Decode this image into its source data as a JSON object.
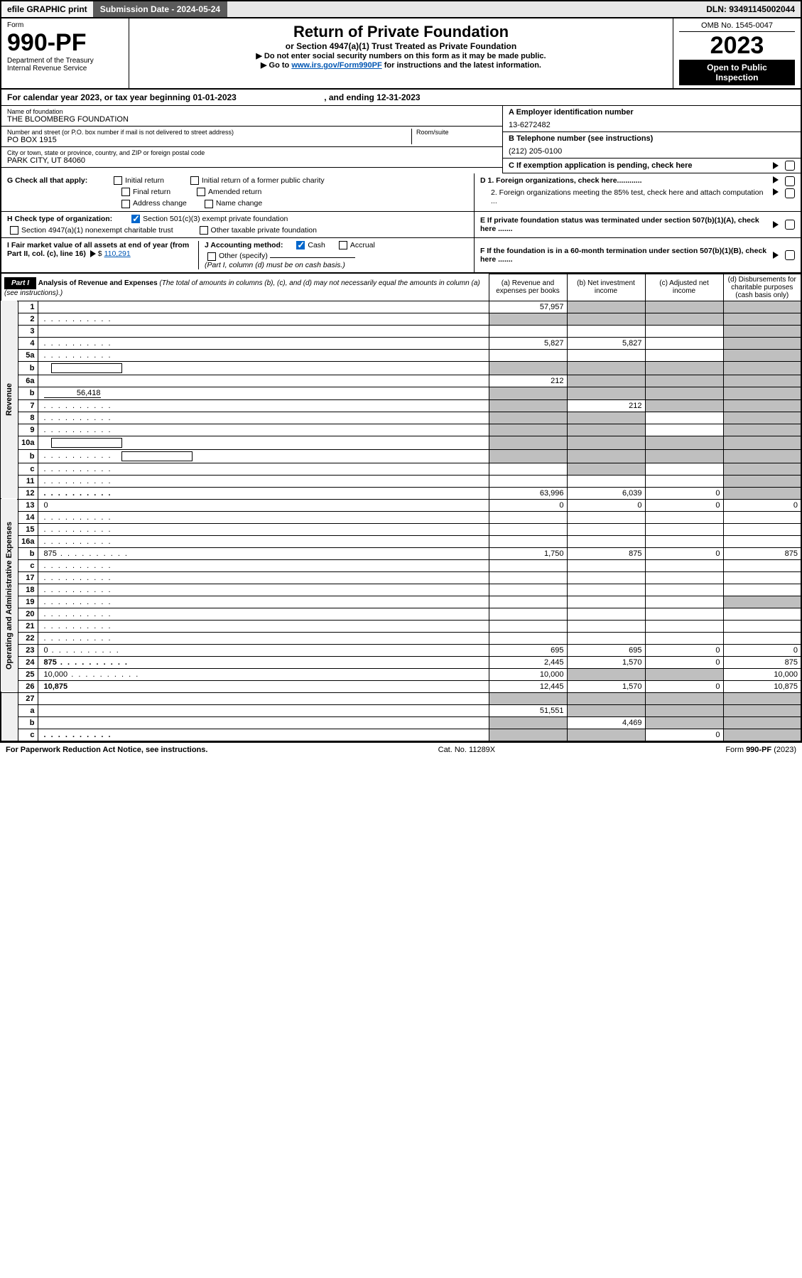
{
  "topbar": {
    "efile_prefix": "efile",
    "efile_rest": " GRAPHIC print",
    "submission_label": "Submission Date - ",
    "submission_date": "2024-05-24",
    "dln_label": "DLN: ",
    "dln": "93491145002044"
  },
  "header": {
    "form_label": "Form",
    "form_no": "990-PF",
    "dept": "Department of the Treasury",
    "irs": "Internal Revenue Service",
    "title": "Return of Private Foundation",
    "sub": "or Section 4947(a)(1) Trust Treated as Private Foundation",
    "note1": "▶ Do not enter social security numbers on this form as it may be made public.",
    "note2_pre": "▶ Go to ",
    "note2_link": "www.irs.gov/Form990PF",
    "note2_post": " for instructions and the latest information.",
    "omb": "OMB No. 1545-0047",
    "year": "2023",
    "open1": "Open to Public",
    "open2": "Inspection"
  },
  "cal_year": {
    "text_pre": "For calendar year 2023, or tax year beginning ",
    "begin": "01-01-2023",
    "mid": " , and ending ",
    "end": "12-31-2023"
  },
  "entity": {
    "name_label": "Name of foundation",
    "name": "THE BLOOMBERG FOUNDATION",
    "ein_label": "A Employer identification number",
    "ein": "13-6272482",
    "addr_label": "Number and street (or P.O. box number if mail is not delivered to street address)",
    "addr": "PO BOX 1915",
    "room_label": "Room/suite",
    "phone_label": "B Telephone number (see instructions)",
    "phone": "(212) 205-0100",
    "city_label": "City or town, state or province, country, and ZIP or foreign postal code",
    "city": "PARK CITY, UT  84060",
    "c_label": "C If exemption application is pending, check here"
  },
  "checks": {
    "g_label": "G Check all that apply:",
    "g_items": [
      "Initial return",
      "Initial return of a former public charity",
      "Final return",
      "Amended return",
      "Address change",
      "Name change"
    ],
    "d1": "D 1. Foreign organizations, check here............",
    "d2": "2. Foreign organizations meeting the 85% test, check here and attach computation ...",
    "h_label": "H Check type of organization:",
    "h_501c3": "Section 501(c)(3) exempt private foundation",
    "h_4947": "Section 4947(a)(1) nonexempt charitable trust",
    "h_other": "Other taxable private foundation",
    "e_label": "E If private foundation status was terminated under section 507(b)(1)(A), check here .......",
    "i_label": "I Fair market value of all assets at end of year (from Part II, col. (c), line 16)",
    "i_amount": "110,291",
    "j_label": "J Accounting method:",
    "j_cash": "Cash",
    "j_accrual": "Accrual",
    "j_other": "Other (specify)",
    "j_note": "(Part I, column (d) must be on cash basis.)",
    "f_label": "F If the foundation is in a 60-month termination under section 507(b)(1)(B), check here ......."
  },
  "part1": {
    "label": "Part I",
    "title": "Analysis of Revenue and Expenses",
    "subtitle": " (The total of amounts in columns (b), (c), and (d) may not necessarily equal the amounts in column (a) (see instructions).)",
    "col_a": "(a) Revenue and expenses per books",
    "col_b": "(b) Net investment income",
    "col_c": "(c) Adjusted net income",
    "col_d": "(d) Disbursements for charitable purposes (cash basis only)",
    "vert_rev": "Revenue",
    "vert_exp": "Operating and Administrative Expenses"
  },
  "rows": [
    {
      "n": "1",
      "d": "",
      "a": "57,957",
      "b": "",
      "c": "",
      "grey": [
        "b",
        "c",
        "d"
      ]
    },
    {
      "n": "2",
      "d": "",
      "dot": true,
      "a": "",
      "b": "",
      "c": "",
      "grey": [
        "a",
        "b",
        "c",
        "d"
      ]
    },
    {
      "n": "3",
      "d": "",
      "a": "",
      "b": "",
      "c": "",
      "grey": [
        "d"
      ]
    },
    {
      "n": "4",
      "d": "",
      "dot": true,
      "a": "5,827",
      "b": "5,827",
      "c": "",
      "grey": [
        "d"
      ]
    },
    {
      "n": "5a",
      "d": "",
      "dot": true,
      "a": "",
      "b": "",
      "c": "",
      "grey": [
        "d"
      ]
    },
    {
      "n": "b",
      "d": "",
      "a": "",
      "b": "",
      "c": "",
      "grey": [
        "a",
        "b",
        "c",
        "d"
      ],
      "inset": true
    },
    {
      "n": "6a",
      "d": "",
      "a": "212",
      "b": "",
      "c": "",
      "grey": [
        "b",
        "c",
        "d"
      ]
    },
    {
      "n": "b",
      "d": "",
      "sideval": "56,418",
      "a": "",
      "b": "",
      "c": "",
      "grey": [
        "a",
        "b",
        "c",
        "d"
      ]
    },
    {
      "n": "7",
      "d": "",
      "dot": true,
      "a": "",
      "b": "212",
      "c": "",
      "grey": [
        "a",
        "c",
        "d"
      ]
    },
    {
      "n": "8",
      "d": "",
      "dot": true,
      "a": "",
      "b": "",
      "c": "",
      "grey": [
        "a",
        "b",
        "d"
      ]
    },
    {
      "n": "9",
      "d": "",
      "dot": true,
      "a": "",
      "b": "",
      "c": "",
      "grey": [
        "a",
        "b",
        "d"
      ]
    },
    {
      "n": "10a",
      "d": "",
      "a": "",
      "b": "",
      "c": "",
      "grey": [
        "a",
        "b",
        "c",
        "d"
      ],
      "inset": true
    },
    {
      "n": "b",
      "d": "",
      "dot": true,
      "a": "",
      "b": "",
      "c": "",
      "grey": [
        "a",
        "b",
        "c",
        "d"
      ],
      "inset": true
    },
    {
      "n": "c",
      "d": "",
      "dot": true,
      "a": "",
      "b": "",
      "c": "",
      "grey": [
        "b",
        "d"
      ]
    },
    {
      "n": "11",
      "d": "",
      "dot": true,
      "a": "",
      "b": "",
      "c": "",
      "grey": [
        "d"
      ]
    },
    {
      "n": "12",
      "d": "",
      "dot": true,
      "bold": true,
      "a": "63,996",
      "b": "6,039",
      "c": "0",
      "grey": [
        "d"
      ]
    }
  ],
  "rows_exp": [
    {
      "n": "13",
      "d": "0",
      "a": "0",
      "b": "0",
      "c": "0"
    },
    {
      "n": "14",
      "d": "",
      "dot": true,
      "a": "",
      "b": "",
      "c": ""
    },
    {
      "n": "15",
      "d": "",
      "dot": true,
      "a": "",
      "b": "",
      "c": ""
    },
    {
      "n": "16a",
      "d": "",
      "dot": true,
      "a": "",
      "b": "",
      "c": ""
    },
    {
      "n": "b",
      "d": "875",
      "dot": true,
      "a": "1,750",
      "b": "875",
      "c": "0"
    },
    {
      "n": "c",
      "d": "",
      "dot": true,
      "a": "",
      "b": "",
      "c": ""
    },
    {
      "n": "17",
      "d": "",
      "dot": true,
      "a": "",
      "b": "",
      "c": ""
    },
    {
      "n": "18",
      "d": "",
      "dot": true,
      "a": "",
      "b": "",
      "c": ""
    },
    {
      "n": "19",
      "d": "",
      "dot": true,
      "a": "",
      "b": "",
      "c": "",
      "grey": [
        "d"
      ]
    },
    {
      "n": "20",
      "d": "",
      "dot": true,
      "a": "",
      "b": "",
      "c": ""
    },
    {
      "n": "21",
      "d": "",
      "dot": true,
      "a": "",
      "b": "",
      "c": ""
    },
    {
      "n": "22",
      "d": "",
      "dot": true,
      "a": "",
      "b": "",
      "c": ""
    },
    {
      "n": "23",
      "d": "0",
      "dot": true,
      "a": "695",
      "b": "695",
      "c": "0"
    },
    {
      "n": "24",
      "d": "875",
      "dot": true,
      "bold": true,
      "a": "2,445",
      "b": "1,570",
      "c": "0"
    },
    {
      "n": "25",
      "d": "10,000",
      "dot": true,
      "a": "10,000",
      "b": "",
      "c": "",
      "grey": [
        "b",
        "c"
      ]
    },
    {
      "n": "26",
      "d": "10,875",
      "bold": true,
      "a": "12,445",
      "b": "1,570",
      "c": "0"
    }
  ],
  "rows_net": [
    {
      "n": "27",
      "d": "",
      "a": "",
      "b": "",
      "c": "",
      "grey": [
        "a",
        "b",
        "c",
        "d"
      ]
    },
    {
      "n": "a",
      "d": "",
      "bold": true,
      "a": "51,551",
      "b": "",
      "c": "",
      "grey": [
        "b",
        "c",
        "d"
      ]
    },
    {
      "n": "b",
      "d": "",
      "bold": true,
      "a": "",
      "b": "4,469",
      "c": "",
      "grey": [
        "a",
        "c",
        "d"
      ]
    },
    {
      "n": "c",
      "d": "",
      "dot": true,
      "bold": true,
      "a": "",
      "b": "",
      "c": "0",
      "grey": [
        "a",
        "b",
        "d"
      ]
    }
  ],
  "footer": {
    "left": "For Paperwork Reduction Act Notice, see instructions.",
    "mid": "Cat. No. 11289X",
    "right": "Form 990-PF (2023)"
  },
  "colors": {
    "link": "#0056b3",
    "black": "#000000",
    "grey_cell": "#bfbfbf",
    "topbar_grey": "#5a5a5a",
    "check_blue": "#0066cc"
  }
}
